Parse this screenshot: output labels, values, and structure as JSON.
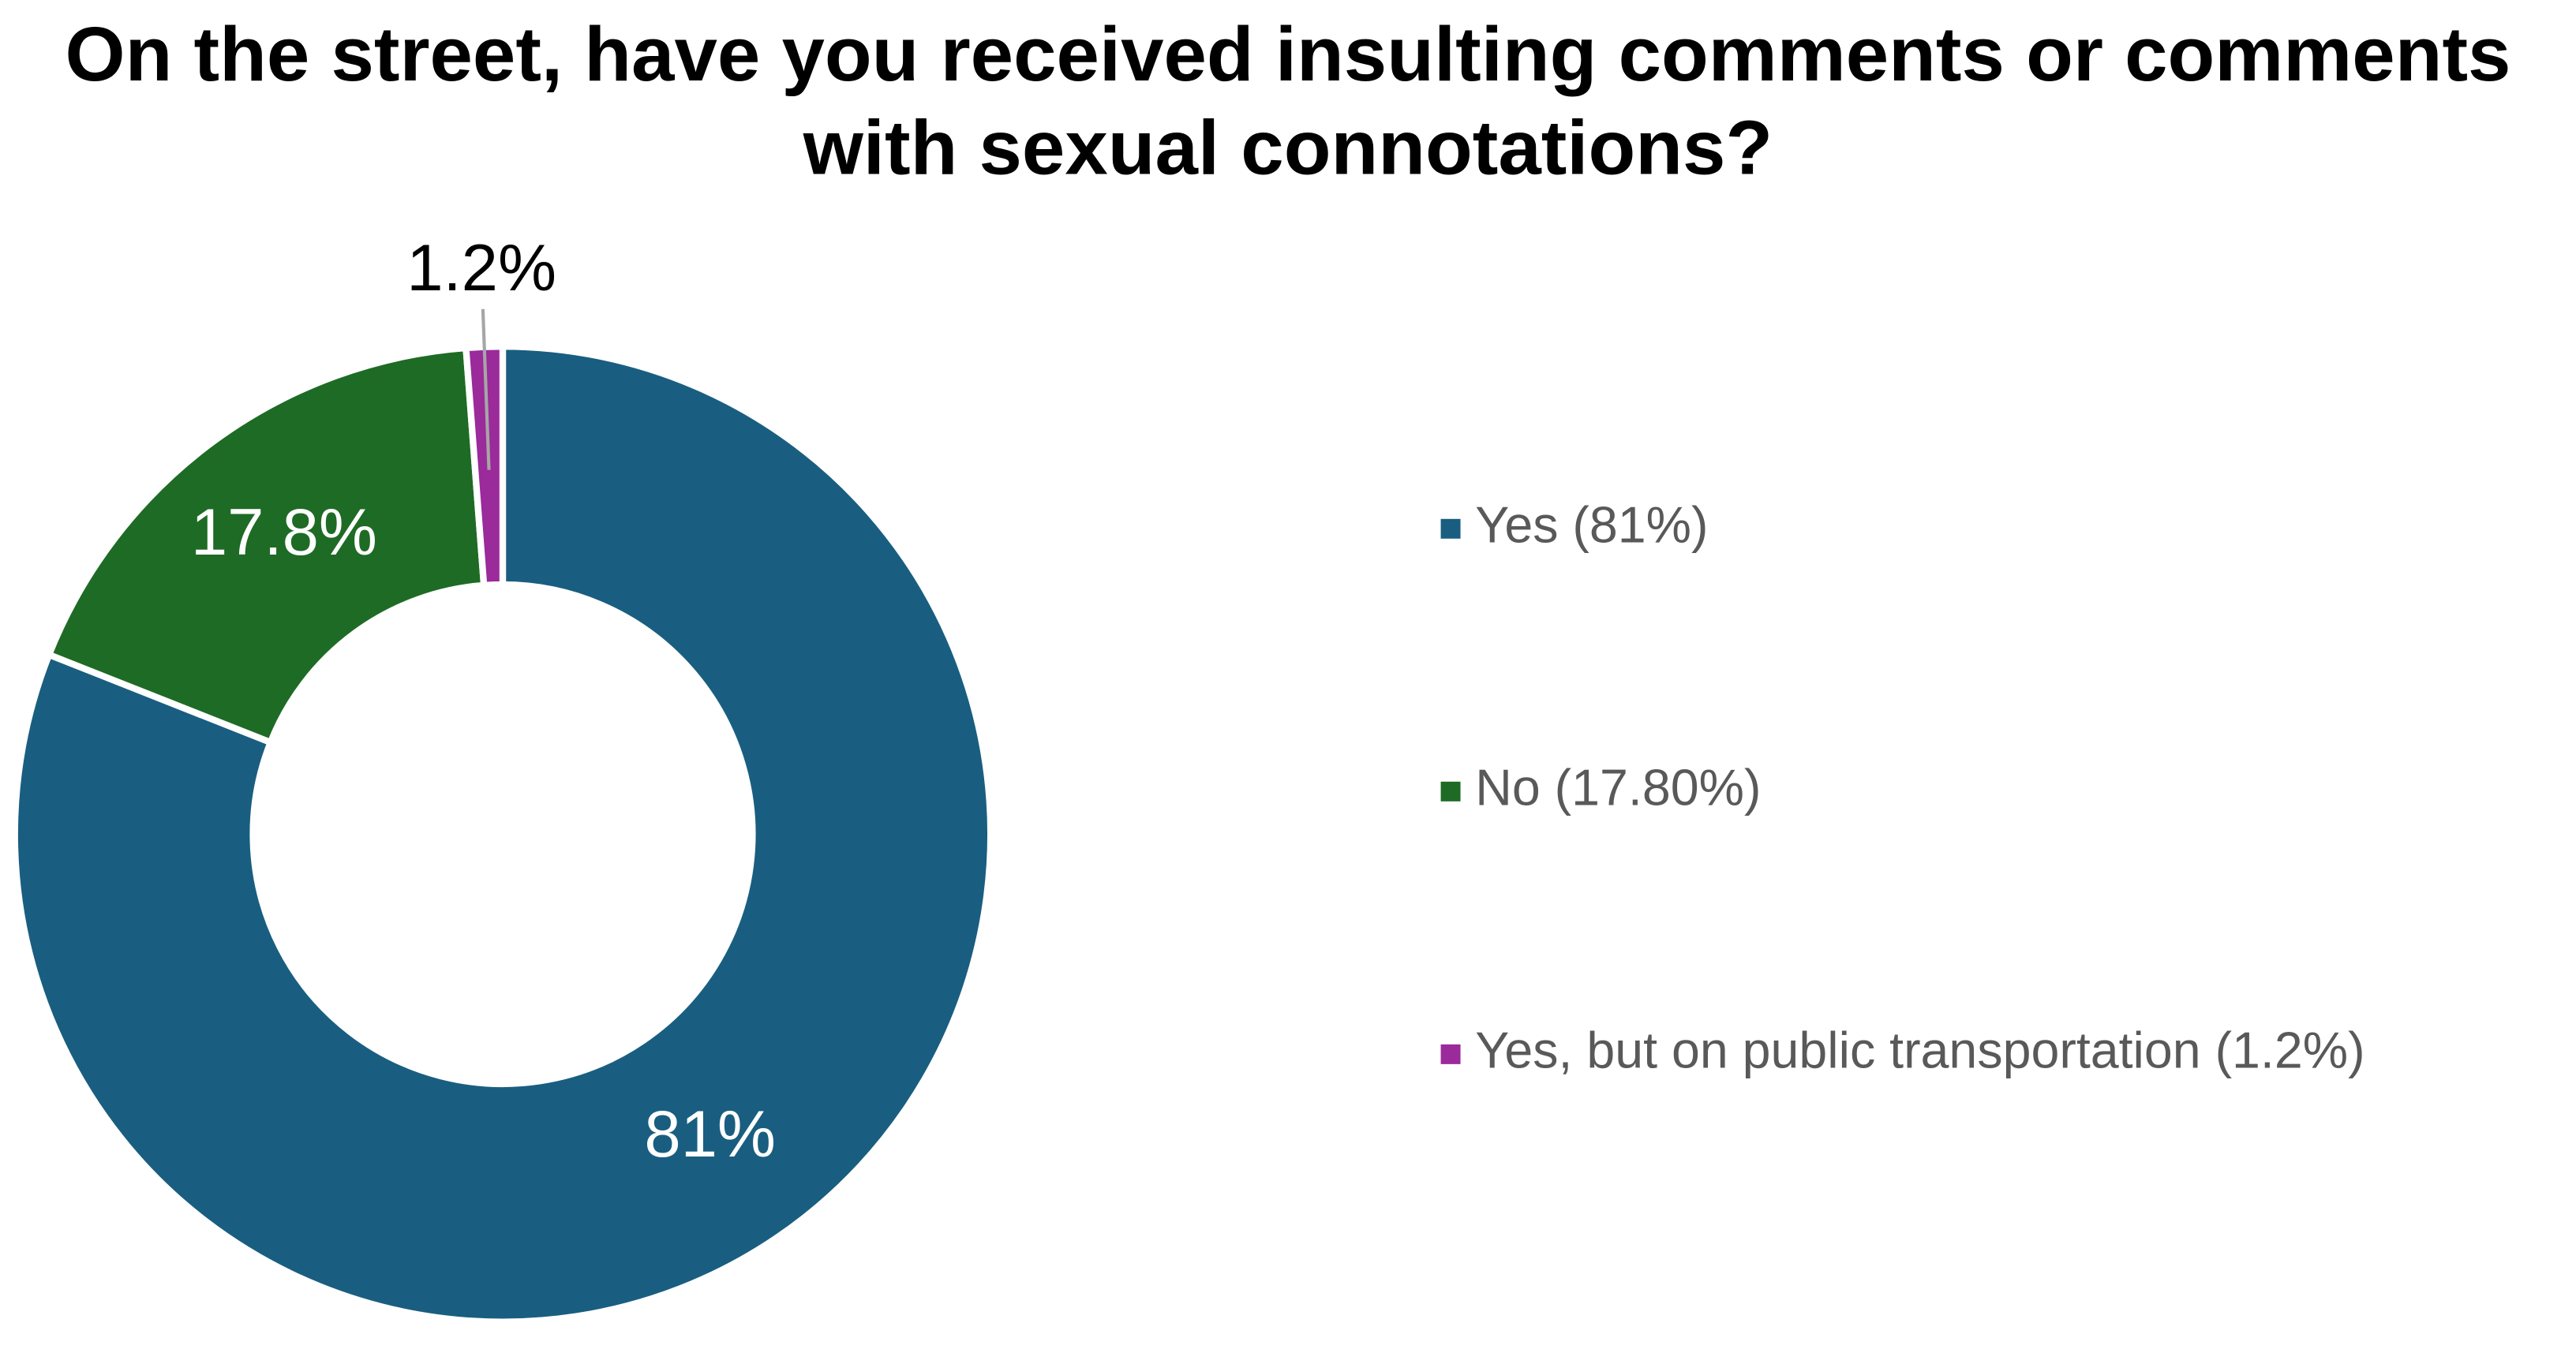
{
  "chart_data": {
    "type": "donut",
    "title": "On the street, have you received insulting comments or comments with sexual connotations?",
    "categories": [
      "Yes (81%)",
      "No (17.80%)",
      "Yes, but on public transportation (1.2%)"
    ],
    "values": [
      81,
      17.8,
      1.2
    ],
    "value_labels": [
      "81%",
      "17.8%",
      "1.2%"
    ],
    "colors": [
      "#195e80",
      "#1e6b25",
      "#9b2a9b"
    ],
    "legend": "right"
  }
}
